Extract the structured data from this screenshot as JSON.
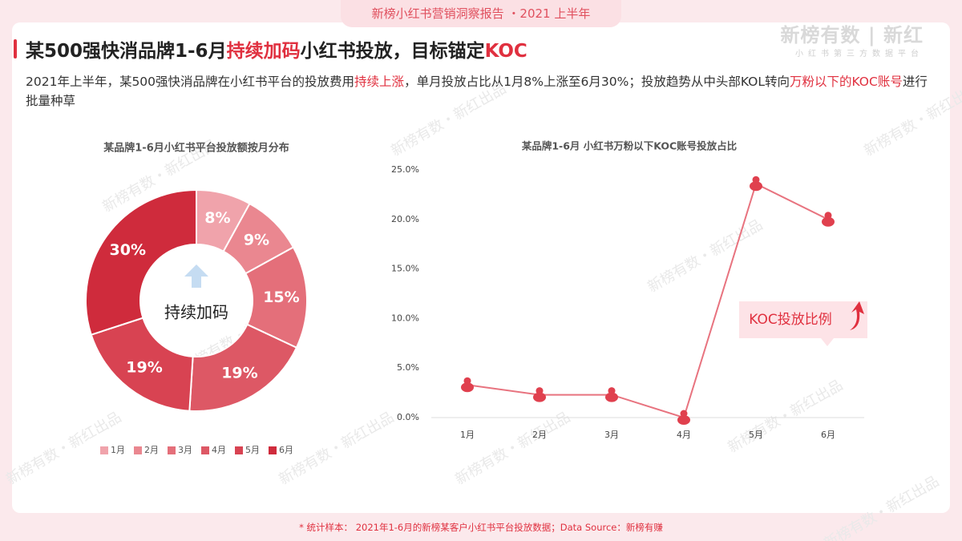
{
  "header": {
    "banner": "新榜小红书营销洞察报告 ・2021 上半年",
    "logo": "新榜有数 | 新红",
    "logo_subtitle": "小红书第三方数据平台",
    "title": [
      {
        "text": "某500强快消品牌1-6月",
        "color": "#222222"
      },
      {
        "text": "持续加码",
        "color": "#e0303f"
      },
      {
        "text": "小红书投放，目标锚定",
        "color": "#222222"
      },
      {
        "text": "KOC",
        "color": "#e0303f"
      }
    ],
    "description": [
      {
        "text": "2021年上半年，某500强快消品牌在小红书平台的投放费用",
        "color": "#333333"
      },
      {
        "text": "持续上涨",
        "color": "#e0303f"
      },
      {
        "text": "，单月投放占比从1月8%上涨至6月30%；投放趋势从中头部KOL转向",
        "color": "#333333"
      },
      {
        "text": "万粉以下的KOC账号",
        "color": "#e0303f"
      },
      {
        "text": "进行批量种草",
        "color": "#333333"
      }
    ],
    "watermark": "新榜有数・新红出品",
    "footnote": "* 统计样本： 2021年1-6月的新榜某客户小红书平台投放数据；Data Source：新榜有赚"
  },
  "chart_data": [
    {
      "type": "donut",
      "title": "某品牌1-6月小红书平台投放额按月分布",
      "center_label": "持续加码",
      "categories": [
        "1月",
        "2月",
        "3月",
        "4月",
        "5月",
        "6月"
      ],
      "values": [
        8,
        9,
        15,
        19,
        19,
        30
      ],
      "value_labels": [
        "8%",
        "9%",
        "15%",
        "19%",
        "19%",
        "30%"
      ],
      "colors": [
        "#f0a3ab",
        "#ea8790",
        "#e46f7a",
        "#dd5865",
        "#d84352",
        "#cf2b3c"
      ]
    },
    {
      "type": "line",
      "title": "某品牌1-6月 小红书万粉以下KOC账号投放占比",
      "categories": [
        "1月",
        "2月",
        "3月",
        "4月",
        "5月",
        "6月"
      ],
      "values": [
        3.3,
        2.3,
        2.3,
        0,
        23.6,
        20
      ],
      "color": "#e8737f",
      "ylim": [
        0,
        25
      ],
      "yticks": [
        {
          "value": 0,
          "label": "0.0%"
        },
        {
          "value": 5,
          "label": "5.0%"
        },
        {
          "value": 10,
          "label": "10.0%"
        },
        {
          "value": 15,
          "label": "15.0%"
        },
        {
          "value": 20,
          "label": "20.0%"
        },
        {
          "value": 25,
          "label": "25.0%"
        }
      ],
      "grid": false,
      "annotation": "KOC投放比例"
    }
  ]
}
